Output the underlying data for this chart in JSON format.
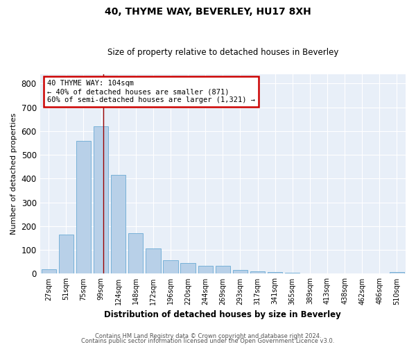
{
  "title": "40, THYME WAY, BEVERLEY, HU17 8XH",
  "subtitle": "Size of property relative to detached houses in Beverley",
  "xlabel": "Distribution of detached houses by size in Beverley",
  "ylabel": "Number of detached properties",
  "categories": [
    "27sqm",
    "51sqm",
    "75sqm",
    "99sqm",
    "124sqm",
    "148sqm",
    "172sqm",
    "196sqm",
    "220sqm",
    "244sqm",
    "269sqm",
    "293sqm",
    "317sqm",
    "341sqm",
    "365sqm",
    "389sqm",
    "413sqm",
    "438sqm",
    "462sqm",
    "486sqm",
    "510sqm"
  ],
  "values": [
    20,
    165,
    560,
    620,
    415,
    170,
    105,
    57,
    45,
    33,
    33,
    15,
    10,
    7,
    5,
    0,
    0,
    0,
    0,
    0,
    7
  ],
  "bar_color": "#b8d0e8",
  "bar_edgecolor": "#6aaad4",
  "background_color": "#e8eff8",
  "vline_x": 3.15,
  "vline_color": "#990000",
  "annotation_text": "40 THYME WAY: 104sqm\n← 40% of detached houses are smaller (871)\n60% of semi-detached houses are larger (1,321) →",
  "annotation_box_edgecolor": "#cc0000",
  "ylim": [
    0,
    840
  ],
  "yticks": [
    0,
    100,
    200,
    300,
    400,
    500,
    600,
    700,
    800
  ],
  "footer_line1": "Contains HM Land Registry data © Crown copyright and database right 2024.",
  "footer_line2": "Contains public sector information licensed under the Open Government Licence v3.0."
}
